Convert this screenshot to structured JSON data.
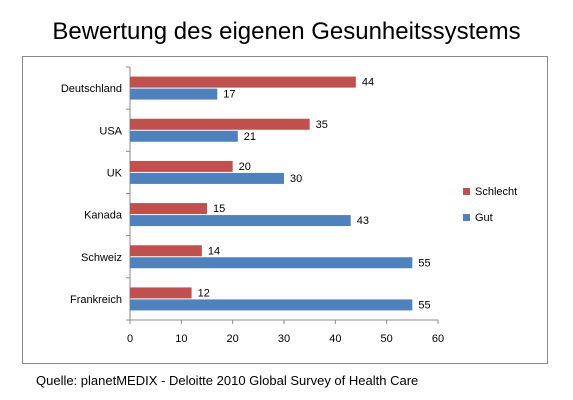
{
  "title": "Bewertung des eigenen Gesunheitssystems",
  "source": "Quelle: planetMEDIX - Deloitte 2010 Global Survey of Health Care",
  "chart_data": {
    "type": "bar",
    "orientation": "horizontal",
    "categories": [
      "Deutschland",
      "USA",
      "UK",
      "Kanada",
      "Schweiz",
      "Frankreich"
    ],
    "series": [
      {
        "name": "Schlecht",
        "values": [
          44,
          35,
          20,
          15,
          14,
          12
        ],
        "color": "#c0504d"
      },
      {
        "name": "Gut",
        "values": [
          17,
          21,
          30,
          43,
          55,
          55
        ],
        "color": "#4f81bd"
      }
    ],
    "xlim": [
      0,
      60
    ],
    "xticks": [
      0,
      10,
      20,
      30,
      40,
      50,
      60
    ],
    "grid": false,
    "legend_position": "right"
  }
}
